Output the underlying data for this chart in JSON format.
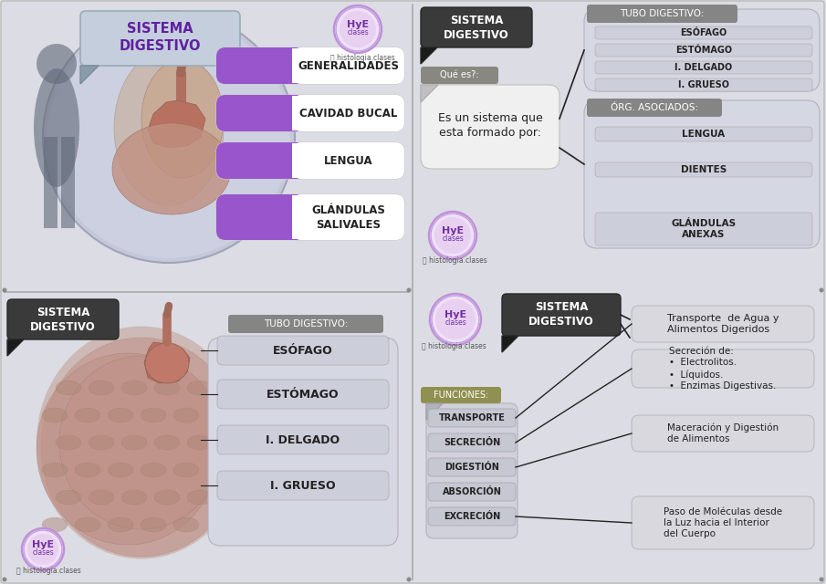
{
  "bg_color": "#dcdce4",
  "purple": "#9955cc",
  "dark_gray": "#404040",
  "mid_gray": "#888888",
  "light_gray": "#d0d2da",
  "white": "#ffffff",
  "top_left": {
    "title": "SISTEMA\nDIGESTIVO",
    "items": [
      "GENERALIDADES",
      "CAVIDAD BUCAL",
      "LENGUA",
      "GLÁNDULAS\nSALIVALES"
    ]
  },
  "top_right": {
    "title": "SISTEMA\nDIGESTIVO",
    "que_es": "Qué es?:",
    "desc": "Es un sistema que\nesta formado por:",
    "tubo_title": "TUBO DIGESTIVO:",
    "tubo_items": [
      "ESÓFAGO",
      "ESTÓMAGO",
      "I. DELGADO",
      "I. GRUESO"
    ],
    "org_title": "ÓRG. ASOCIADOS:",
    "org_items": [
      "LENGUA",
      "DIENTES",
      "GLÁNDULAS\nANEXAS"
    ]
  },
  "bottom_left": {
    "title": "SISTEMA\nDIGESTIVO",
    "tubo_title": "TUBO DIGESTIVO:",
    "tubo_items": [
      "ESÓFAGO",
      "ESTÓMAGO",
      "I. DELGADO",
      "I. GRUESO"
    ]
  },
  "bottom_right": {
    "title": "SISTEMA\nDIGESTIVO",
    "funciones_title": "FUNCIONES:",
    "funciones": [
      "TRANSPORTE",
      "SECRECIÓN",
      "DIGESTIÓN",
      "ABSORCIÓN",
      "EXCRECIÓN"
    ],
    "desc_boxes": [
      "Transporte  de Agua y\nAlimentos Digeridos",
      "Secreción de:\n•  Electrolitos.\n•  Líquidos.\n•  Enzimas Digestivas.",
      "Maceración y Digestión\nde Alimentos",
      "Paso de Moléculas desde\nla Luz hacia el Interior\ndel Cuerpo"
    ]
  },
  "instagram": "histologia.clases"
}
